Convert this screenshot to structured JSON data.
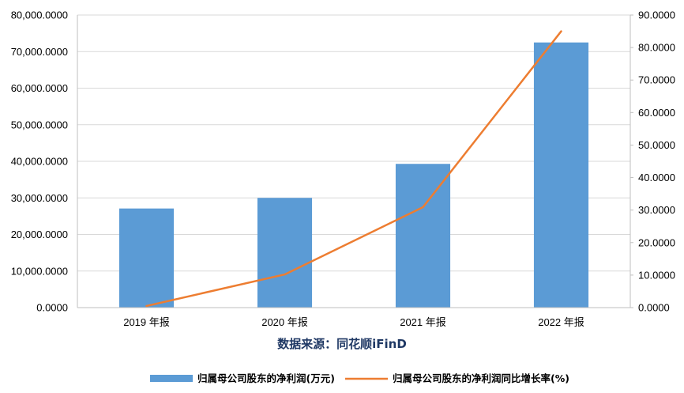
{
  "chart_data": {
    "type": "bar",
    "categories": [
      "2019 年报",
      "2020 年报",
      "2021 年报",
      "2022 年报"
    ],
    "series": [
      {
        "name": "归属母公司股东的净利润(万元)",
        "type": "bar",
        "axis": "left",
        "color": "#5b9bd5",
        "values": [
          27100,
          30000,
          39300,
          72500
        ]
      },
      {
        "name": "归属母公司股东的净利润同比增长率(%)",
        "type": "line",
        "axis": "right",
        "color": "#ed7d31",
        "values": [
          0.5,
          10.2,
          30.9,
          85.0
        ]
      }
    ],
    "y_left": {
      "min": 0,
      "max": 80000,
      "ticks": [
        "0.0000",
        "10,000.0000",
        "20,000.0000",
        "30,000.0000",
        "40,000.0000",
        "50,000.0000",
        "60,000.0000",
        "70,000.0000",
        "80,000.0000"
      ]
    },
    "y_right": {
      "min": 0,
      "max": 90,
      "ticks": [
        "0.0000",
        "10.0000",
        "20.0000",
        "30.0000",
        "40.0000",
        "50.0000",
        "60.0000",
        "70.0000",
        "80.0000",
        "90.0000"
      ]
    },
    "grid": true,
    "legend_position": "bottom",
    "source_note": "数据来源：同花顺iFinD"
  }
}
